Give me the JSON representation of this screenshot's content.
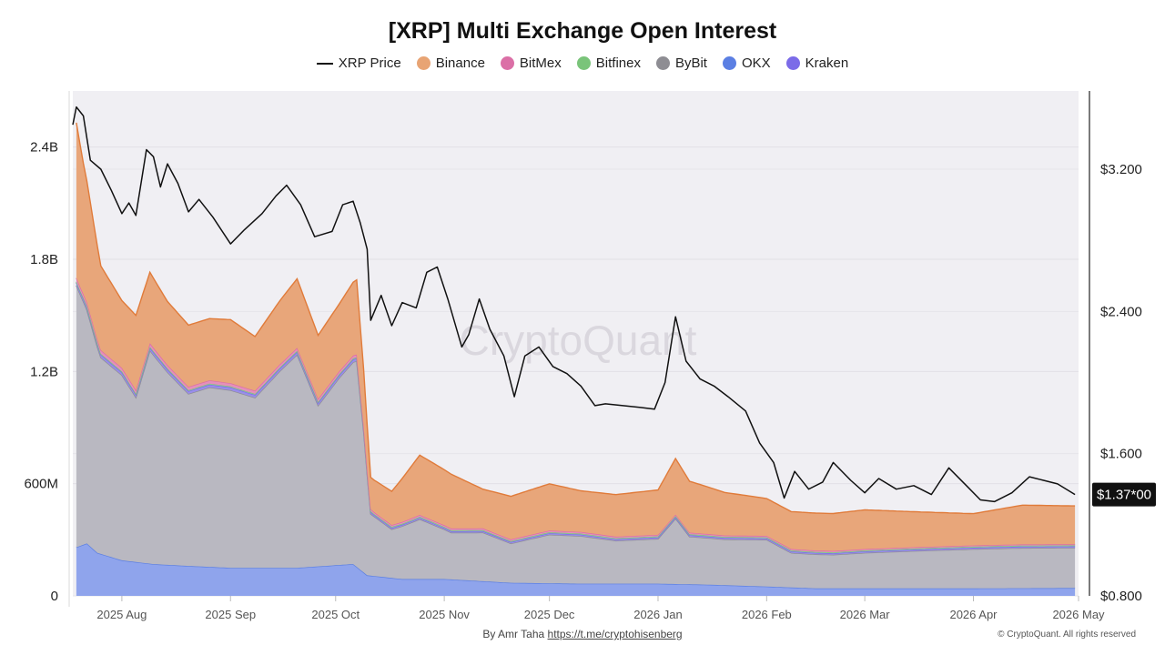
{
  "chart_data": {
    "type": "area",
    "title": "[XRP] Multi Exchange Open Interest",
    "watermark": "CryptoQuant",
    "legend": [
      {
        "name": "XRP Price",
        "style": "line",
        "color": "#111111"
      },
      {
        "name": "Binance",
        "style": "dot",
        "color": "#E8A474"
      },
      {
        "name": "BitMex",
        "style": "dot",
        "color": "#DB6FA6"
      },
      {
        "name": "Bitfinex",
        "style": "dot",
        "color": "#7AC47A"
      },
      {
        "name": "ByBit",
        "style": "dot",
        "color": "#8E8D93"
      },
      {
        "name": "OKX",
        "style": "dot",
        "color": "#5B7FE3"
      },
      {
        "name": "Kraken",
        "style": "dot",
        "color": "#7B6BE8"
      }
    ],
    "x_range": [
      "2025-07-18",
      "2026-05-01"
    ],
    "x_ticks": [
      {
        "date": "2025-08-01",
        "label": "2025 Aug"
      },
      {
        "date": "2025-09-01",
        "label": "2025 Sep"
      },
      {
        "date": "2025-10-01",
        "label": "2025 Oct"
      },
      {
        "date": "2025-11-01",
        "label": "2025 Nov"
      },
      {
        "date": "2025-12-01",
        "label": "2025 Dec"
      },
      {
        "date": "2026-01-01",
        "label": "2026 Jan"
      },
      {
        "date": "2026-02-01",
        "label": "2026 Feb"
      },
      {
        "date": "2026-03-01",
        "label": "2026 Mar"
      },
      {
        "date": "2026-04-01",
        "label": "2026 Apr"
      },
      {
        "date": "2026-05-01",
        "label": "2026 May"
      }
    ],
    "y_left": {
      "min": 0,
      "max": 2700000000,
      "ticks": [
        {
          "value": 0,
          "label": "0"
        },
        {
          "value": 600000000,
          "label": "600M"
        },
        {
          "value": 1200000000,
          "label": "1.2B"
        },
        {
          "value": 1800000000,
          "label": "1.8B"
        },
        {
          "value": 2400000000,
          "label": "2.4B"
        }
      ]
    },
    "y_right": {
      "min": 0.8,
      "max": 3.64,
      "ticks": [
        {
          "value": 0.8,
          "label": "$0.800"
        },
        {
          "value": 1.6,
          "label": "$1.600"
        },
        {
          "value": 2.4,
          "label": "$2.400"
        },
        {
          "value": 3.2,
          "label": "$3.200"
        }
      ]
    },
    "price_label": "$1.37*00",
    "grid": "horizontal",
    "series_stacked": [
      {
        "name": "OKX",
        "color": "#5B7FE3",
        "fill": "#8FA4EC",
        "points": [
          [
            "2025-07-19",
            260000000
          ],
          [
            "2025-07-22",
            280000000
          ],
          [
            "2025-07-25",
            230000000
          ],
          [
            "2025-08-01",
            190000000
          ],
          [
            "2025-08-10",
            170000000
          ],
          [
            "2025-08-20",
            160000000
          ],
          [
            "2025-09-01",
            150000000
          ],
          [
            "2025-09-20",
            150000000
          ],
          [
            "2025-10-06",
            170000000
          ],
          [
            "2025-10-10",
            110000000
          ],
          [
            "2025-10-20",
            90000000
          ],
          [
            "2025-11-01",
            90000000
          ],
          [
            "2025-11-20",
            70000000
          ],
          [
            "2025-12-10",
            65000000
          ],
          [
            "2026-01-01",
            65000000
          ],
          [
            "2026-01-15",
            60000000
          ],
          [
            "2026-02-01",
            50000000
          ],
          [
            "2026-02-15",
            40000000
          ],
          [
            "2026-03-01",
            40000000
          ],
          [
            "2026-04-01",
            40000000
          ],
          [
            "2026-04-30",
            42000000
          ]
        ]
      },
      {
        "name": "ByBit",
        "color": "#8E8D93",
        "fill": "#B9B8C1",
        "points": [
          [
            "2025-07-19",
            1400000000
          ],
          [
            "2025-07-21",
            1300000000
          ],
          [
            "2025-07-26",
            1050000000
          ],
          [
            "2025-08-01",
            990000000
          ],
          [
            "2025-08-05",
            880000000
          ],
          [
            "2025-08-09",
            1140000000
          ],
          [
            "2025-08-14",
            1030000000
          ],
          [
            "2025-08-20",
            920000000
          ],
          [
            "2025-08-26",
            960000000
          ],
          [
            "2025-09-01",
            950000000
          ],
          [
            "2025-09-08",
            910000000
          ],
          [
            "2025-09-15",
            1050000000
          ],
          [
            "2025-09-20",
            1140000000
          ],
          [
            "2025-09-26",
            860000000
          ],
          [
            "2025-10-02",
            1000000000
          ],
          [
            "2025-10-07",
            1100000000
          ],
          [
            "2025-10-09",
            750000000
          ],
          [
            "2025-10-11",
            330000000
          ],
          [
            "2025-10-17",
            260000000
          ],
          [
            "2025-10-25",
            320000000
          ],
          [
            "2025-11-03",
            250000000
          ],
          [
            "2025-11-12",
            260000000
          ],
          [
            "2025-11-20",
            210000000
          ],
          [
            "2025-12-01",
            260000000
          ],
          [
            "2025-12-10",
            255000000
          ],
          [
            "2025-12-20",
            230000000
          ],
          [
            "2026-01-01",
            240000000
          ],
          [
            "2026-01-06",
            350000000
          ],
          [
            "2026-01-10",
            255000000
          ],
          [
            "2026-01-20",
            245000000
          ],
          [
            "2026-02-01",
            250000000
          ],
          [
            "2026-02-08",
            185000000
          ],
          [
            "2026-02-20",
            180000000
          ],
          [
            "2026-03-01",
            190000000
          ],
          [
            "2026-03-15",
            200000000
          ],
          [
            "2026-04-01",
            210000000
          ],
          [
            "2026-04-15",
            215000000
          ],
          [
            "2026-04-30",
            215000000
          ]
        ]
      },
      {
        "name": "Kraken",
        "color": "#7B6BE8",
        "fill": "#9A8EEA",
        "points": [
          [
            "2025-07-19",
            15000000
          ],
          [
            "2025-10-08",
            15000000
          ],
          [
            "2025-10-12",
            8000000
          ],
          [
            "2026-04-30",
            8000000
          ]
        ]
      },
      {
        "name": "Bitfinex",
        "color": "#7AC47A",
        "fill": "#A5D6A5",
        "points": [
          [
            "2025-07-19",
            5000000
          ],
          [
            "2026-04-30",
            5000000
          ]
        ]
      },
      {
        "name": "BitMex",
        "color": "#DB6FA6",
        "fill": "#E58FBB",
        "points": [
          [
            "2025-07-19",
            20000000
          ],
          [
            "2025-10-08",
            15000000
          ],
          [
            "2025-10-12",
            10000000
          ],
          [
            "2026-04-30",
            6000000
          ]
        ]
      },
      {
        "name": "Binance",
        "color": "#E07B3A",
        "fill": "#E8A67A",
        "points": [
          [
            "2025-07-19",
            830000000
          ],
          [
            "2025-07-21",
            700000000
          ],
          [
            "2025-07-26",
            450000000
          ],
          [
            "2025-08-01",
            360000000
          ],
          [
            "2025-08-05",
            400000000
          ],
          [
            "2025-08-09",
            380000000
          ],
          [
            "2025-08-14",
            340000000
          ],
          [
            "2025-08-20",
            330000000
          ],
          [
            "2025-08-26",
            330000000
          ],
          [
            "2025-09-01",
            340000000
          ],
          [
            "2025-09-08",
            290000000
          ],
          [
            "2025-09-15",
            340000000
          ],
          [
            "2025-09-20",
            370000000
          ],
          [
            "2025-09-26",
            340000000
          ],
          [
            "2025-10-02",
            360000000
          ],
          [
            "2025-10-07",
            400000000
          ],
          [
            "2025-10-09",
            300000000
          ],
          [
            "2025-10-11",
            170000000
          ],
          [
            "2025-10-17",
            180000000
          ],
          [
            "2025-10-25",
            320000000
          ],
          [
            "2025-11-03",
            290000000
          ],
          [
            "2025-11-12",
            210000000
          ],
          [
            "2025-11-20",
            230000000
          ],
          [
            "2025-12-01",
            250000000
          ],
          [
            "2025-12-10",
            220000000
          ],
          [
            "2025-12-20",
            225000000
          ],
          [
            "2026-01-01",
            240000000
          ],
          [
            "2026-01-06",
            300000000
          ],
          [
            "2026-01-10",
            275000000
          ],
          [
            "2026-01-20",
            230000000
          ],
          [
            "2026-02-01",
            200000000
          ],
          [
            "2026-02-08",
            200000000
          ],
          [
            "2026-02-20",
            200000000
          ],
          [
            "2026-03-01",
            210000000
          ],
          [
            "2026-03-15",
            190000000
          ],
          [
            "2026-04-01",
            170000000
          ],
          [
            "2026-04-15",
            210000000
          ],
          [
            "2026-04-30",
            205000000
          ]
        ]
      }
    ],
    "price_series": {
      "name": "XRP Price",
      "color": "#111111",
      "points": [
        [
          "2025-07-18",
          3.45
        ],
        [
          "2025-07-19",
          3.55
        ],
        [
          "2025-07-21",
          3.5
        ],
        [
          "2025-07-23",
          3.25
        ],
        [
          "2025-07-26",
          3.2
        ],
        [
          "2025-07-29",
          3.08
        ],
        [
          "2025-08-01",
          2.95
        ],
        [
          "2025-08-03",
          3.01
        ],
        [
          "2025-08-05",
          2.94
        ],
        [
          "2025-08-08",
          3.31
        ],
        [
          "2025-08-10",
          3.27
        ],
        [
          "2025-08-12",
          3.1
        ],
        [
          "2025-08-14",
          3.23
        ],
        [
          "2025-08-17",
          3.12
        ],
        [
          "2025-08-20",
          2.96
        ],
        [
          "2025-08-23",
          3.03
        ],
        [
          "2025-08-27",
          2.93
        ],
        [
          "2025-09-01",
          2.78
        ],
        [
          "2025-09-05",
          2.86
        ],
        [
          "2025-09-10",
          2.95
        ],
        [
          "2025-09-14",
          3.05
        ],
        [
          "2025-09-17",
          3.11
        ],
        [
          "2025-09-21",
          3.0
        ],
        [
          "2025-09-25",
          2.82
        ],
        [
          "2025-09-30",
          2.85
        ],
        [
          "2025-10-03",
          3.0
        ],
        [
          "2025-10-06",
          3.02
        ],
        [
          "2025-10-08",
          2.9
        ],
        [
          "2025-10-10",
          2.75
        ],
        [
          "2025-10-11",
          2.35
        ],
        [
          "2025-10-14",
          2.49
        ],
        [
          "2025-10-17",
          2.32
        ],
        [
          "2025-10-20",
          2.45
        ],
        [
          "2025-10-24",
          2.42
        ],
        [
          "2025-10-27",
          2.62
        ],
        [
          "2025-10-30",
          2.65
        ],
        [
          "2025-11-02",
          2.47
        ],
        [
          "2025-11-06",
          2.2
        ],
        [
          "2025-11-08",
          2.27
        ],
        [
          "2025-11-11",
          2.47
        ],
        [
          "2025-11-14",
          2.3
        ],
        [
          "2025-11-18",
          2.15
        ],
        [
          "2025-11-21",
          1.92
        ],
        [
          "2025-11-24",
          2.15
        ],
        [
          "2025-11-28",
          2.2
        ],
        [
          "2025-12-02",
          2.09
        ],
        [
          "2025-12-06",
          2.05
        ],
        [
          "2025-12-10",
          1.98
        ],
        [
          "2025-12-14",
          1.87
        ],
        [
          "2025-12-17",
          1.88
        ],
        [
          "2025-12-22",
          1.87
        ],
        [
          "2025-12-27",
          1.86
        ],
        [
          "2025-12-31",
          1.85
        ],
        [
          "2026-01-03",
          2.0
        ],
        [
          "2026-01-06",
          2.37
        ],
        [
          "2026-01-09",
          2.12
        ],
        [
          "2026-01-13",
          2.02
        ],
        [
          "2026-01-17",
          1.98
        ],
        [
          "2026-01-21",
          1.92
        ],
        [
          "2026-01-26",
          1.84
        ],
        [
          "2026-01-30",
          1.66
        ],
        [
          "2026-02-03",
          1.55
        ],
        [
          "2026-02-06",
          1.35
        ],
        [
          "2026-02-09",
          1.5
        ],
        [
          "2026-02-13",
          1.4
        ],
        [
          "2026-02-17",
          1.44
        ],
        [
          "2026-02-20",
          1.55
        ],
        [
          "2026-02-25",
          1.45
        ],
        [
          "2026-03-01",
          1.38
        ],
        [
          "2026-03-05",
          1.46
        ],
        [
          "2026-03-10",
          1.4
        ],
        [
          "2026-03-15",
          1.42
        ],
        [
          "2026-03-20",
          1.37
        ],
        [
          "2026-03-25",
          1.52
        ],
        [
          "2026-03-30",
          1.42
        ],
        [
          "2026-04-03",
          1.34
        ],
        [
          "2026-04-07",
          1.33
        ],
        [
          "2026-04-12",
          1.38
        ],
        [
          "2026-04-17",
          1.47
        ],
        [
          "2026-04-21",
          1.45
        ],
        [
          "2026-04-25",
          1.43
        ],
        [
          "2026-04-30",
          1.37
        ]
      ]
    }
  },
  "footer": {
    "credit_prefix": "By Amr Taha",
    "credit_link": "https://t.me/cryptohisenberg",
    "copyright": "© CryptoQuant. All rights reserved"
  }
}
